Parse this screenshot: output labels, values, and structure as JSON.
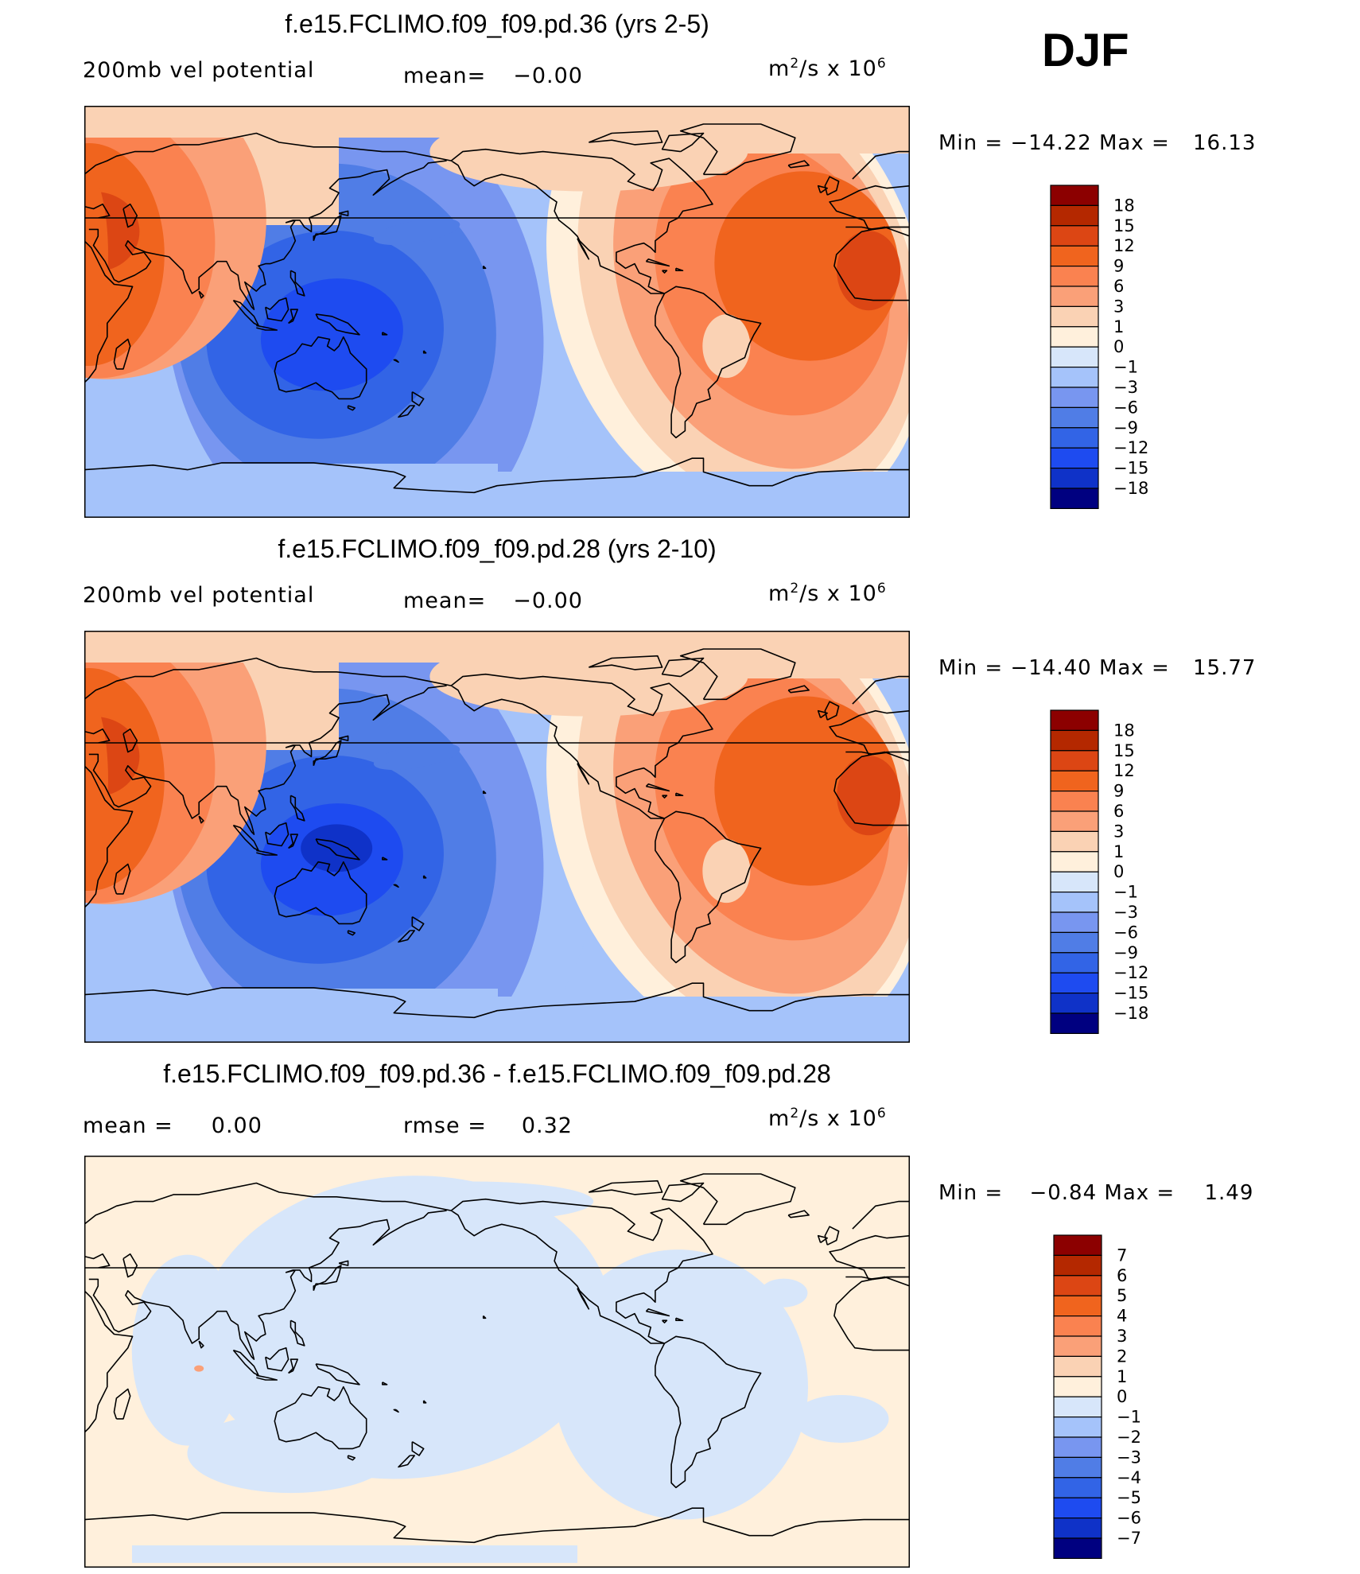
{
  "season": "DJF",
  "palettes": {
    "full": [
      "#000080",
      "#0a1ea0",
      "#0f32c8",
      "#1e4bf0",
      "#3264e6",
      "#507de6",
      "#7896f0",
      "#a5c3fa",
      "#d7e6fa",
      "#fff0dc",
      "#fad2b4",
      "#faa078",
      "#fa8250",
      "#f0641e",
      "#dc4614",
      "#b42800",
      "#8c0000"
    ]
  },
  "panels": [
    {
      "title": "f.e15.FCLIMO.f09_f09.pd.36 (yrs 2-5)",
      "left_label": "200mb vel potential",
      "center_label": "mean=",
      "center_value": "−0.00",
      "units_prefix": "m",
      "units_sup1": "2",
      "units_mid": "/s x 10",
      "units_sup2": "6",
      "min_label": "Min =",
      "min_value": "−14.22",
      "max_label": "Max =",
      "max_value": "16.13",
      "colorbar_levels": [
        "18",
        "15",
        "12",
        "9",
        "6",
        "3",
        "1",
        "0",
        "−1",
        "−3",
        "−6",
        "−9",
        "−12",
        "−15",
        "−18"
      ]
    },
    {
      "title": "f.e15.FCLIMO.f09_f09.pd.28 (yrs 2-10)",
      "left_label": "200mb vel potential",
      "center_label": "mean=",
      "center_value": "−0.00",
      "units_prefix": "m",
      "units_sup1": "2",
      "units_mid": "/s x 10",
      "units_sup2": "6",
      "min_label": "Min =",
      "min_value": "−14.40",
      "max_label": "Max =",
      "max_value": "15.77",
      "colorbar_levels": [
        "18",
        "15",
        "12",
        "9",
        "6",
        "3",
        "1",
        "0",
        "−1",
        "−3",
        "−6",
        "−9",
        "−12",
        "−15",
        "−18"
      ]
    },
    {
      "title": "f.e15.FCLIMO.f09_f09.pd.36 - f.e15.FCLIMO.f09_f09.pd.28",
      "left_label": "mean =",
      "left_value": "0.00",
      "center_label": "rmse =",
      "center_value": "0.32",
      "units_prefix": "m",
      "units_sup1": "2",
      "units_mid": "/s x 10",
      "units_sup2": "6",
      "min_label": "Min =",
      "min_value": "−0.84",
      "max_label": "Max =",
      "max_value": "1.49",
      "colorbar_levels": [
        "7",
        "6",
        "5",
        "4",
        "3",
        "2",
        "1",
        "0",
        "−1",
        "−2",
        "−3",
        "−4",
        "−5",
        "−6",
        "−7"
      ]
    }
  ]
}
